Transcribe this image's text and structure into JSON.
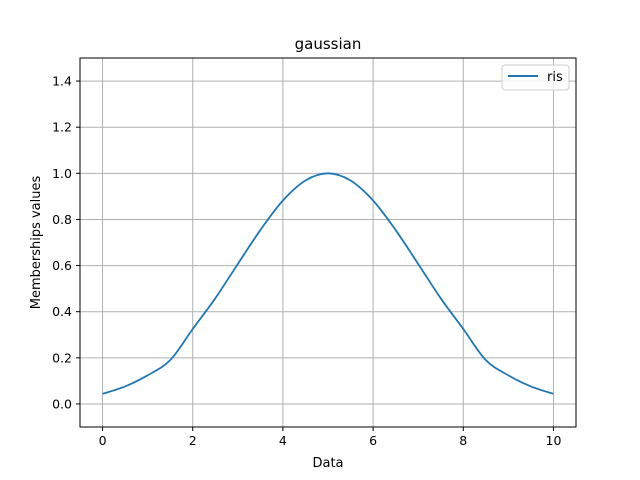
{
  "chart_data": {
    "type": "line",
    "title": "gaussian",
    "xlabel": "Data",
    "ylabel": "Memberships values",
    "xlim": [
      -0.5,
      10.5
    ],
    "ylim": [
      -0.1,
      1.5
    ],
    "x_ticks": [
      0,
      2,
      4,
      6,
      8,
      10
    ],
    "y_ticks": [
      0.0,
      0.2,
      0.4,
      0.6,
      0.8,
      1.0,
      1.2,
      1.4
    ],
    "x_tick_labels": [
      "0",
      "2",
      "4",
      "6",
      "8",
      "10"
    ],
    "y_tick_labels": [
      "0.0",
      "0.2",
      "0.4",
      "0.6",
      "0.8",
      "1.0",
      "1.2",
      "1.4"
    ],
    "grid": true,
    "legend_position": "top-right",
    "series": [
      {
        "name": "ris",
        "color": "#1f77b4",
        "x": [
          0,
          0.5,
          1,
          1.5,
          2,
          2.5,
          3,
          3.5,
          4,
          4.5,
          5,
          5.5,
          6,
          6.5,
          7,
          7.5,
          8,
          8.5,
          9,
          9.5,
          10
        ],
        "y": [
          0.044,
          0.076,
          0.124,
          0.19,
          0.325,
          0.458,
          0.607,
          0.754,
          0.882,
          0.969,
          1.0,
          0.969,
          0.882,
          0.754,
          0.607,
          0.458,
          0.325,
          0.19,
          0.124,
          0.076,
          0.044
        ]
      }
    ]
  }
}
